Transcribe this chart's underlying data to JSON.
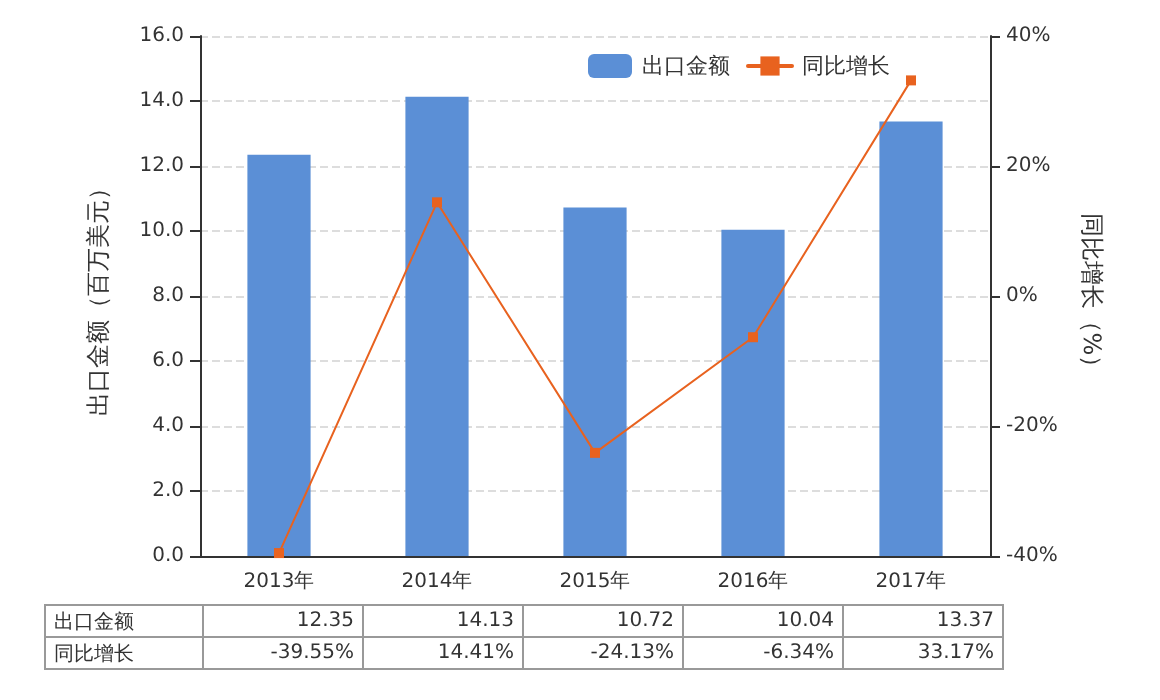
{
  "chart_data": {
    "type": "bar",
    "categories": [
      "2013年",
      "2014年",
      "2015年",
      "2016年",
      "2017年"
    ],
    "ylabel": "出口金额（百万美元）",
    "y2label": "同比增长（%）",
    "ylim": [
      0,
      16
    ],
    "yticks": [
      {
        "value": 0,
        "label": "0.0"
      },
      {
        "value": 2,
        "label": "2.0"
      },
      {
        "value": 4,
        "label": "4.0"
      },
      {
        "value": 6,
        "label": "6.0"
      },
      {
        "value": 8,
        "label": "8.0"
      },
      {
        "value": 10,
        "label": "10.0"
      },
      {
        "value": 12,
        "label": "12.0"
      },
      {
        "value": 14,
        "label": "14.0"
      },
      {
        "value": 16,
        "label": "16.0"
      }
    ],
    "y2lim": [
      -40,
      40
    ],
    "y2ticks": [
      {
        "value": -40,
        "label": "-40%"
      },
      {
        "value": -20,
        "label": "-20%"
      },
      {
        "value": 0,
        "label": "0%"
      },
      {
        "value": 20,
        "label": "20%"
      },
      {
        "value": 40,
        "label": "40%"
      }
    ],
    "series": [
      {
        "name": "出口金额",
        "color": "#5b8fd6",
        "values": [
          12.35,
          14.13,
          10.72,
          10.04,
          13.37
        ],
        "value_labels": [
          "12.35",
          "14.13",
          "10.72",
          "10.04",
          "13.37"
        ]
      },
      {
        "name": "同比增长",
        "type": "line",
        "axis": "y2",
        "color": "#e8621f",
        "values": [
          -39.55,
          14.41,
          -24.13,
          -6.34,
          33.17
        ],
        "value_labels": [
          "-39.55%",
          "14.41%",
          "-24.13%",
          "-6.34%",
          "33.17%"
        ]
      }
    ],
    "grid": "y",
    "legend": "top right",
    "marker": "square",
    "line_style": "solid"
  }
}
